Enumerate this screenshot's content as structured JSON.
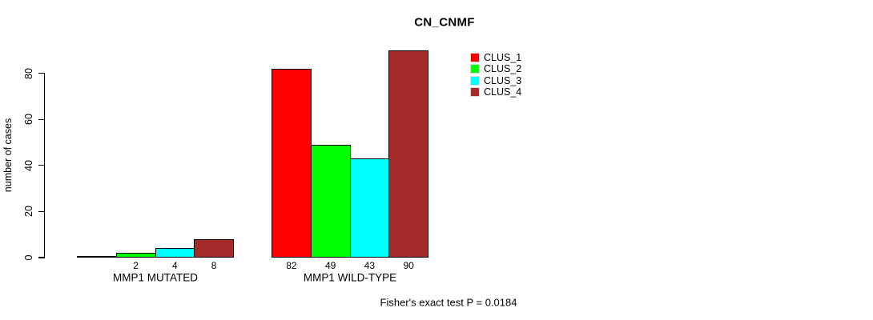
{
  "chart_data": {
    "type": "bar",
    "title": "CN_CNMF",
    "ylabel": "number of cases",
    "xlabel": "",
    "ylim": [
      0,
      90
    ],
    "yticks": [
      0,
      20,
      40,
      60,
      80
    ],
    "grid": false,
    "background": "#ffffff",
    "bar_border_color": "#000000",
    "legend_position": "top-right-inside",
    "legend": [
      "CLUS_1",
      "CLUS_2",
      "CLUS_3",
      "CLUS_4"
    ],
    "series_colors": {
      "CLUS_1": "#ff0000",
      "CLUS_2": "#00ff00",
      "CLUS_3": "#00ffff",
      "CLUS_4": "#a52a2a"
    },
    "groups": [
      {
        "label": "MMP1 MUTATED",
        "values": [
          0,
          2,
          4,
          8
        ],
        "bar_labels": [
          "",
          "2",
          "4",
          "8"
        ]
      },
      {
        "label": "MMP1 WILD-TYPE",
        "values": [
          82,
          49,
          43,
          90
        ],
        "bar_labels": [
          "82",
          "49",
          "43",
          "90"
        ]
      }
    ],
    "footnote": "Fisher's exact test P = 0.0184"
  }
}
